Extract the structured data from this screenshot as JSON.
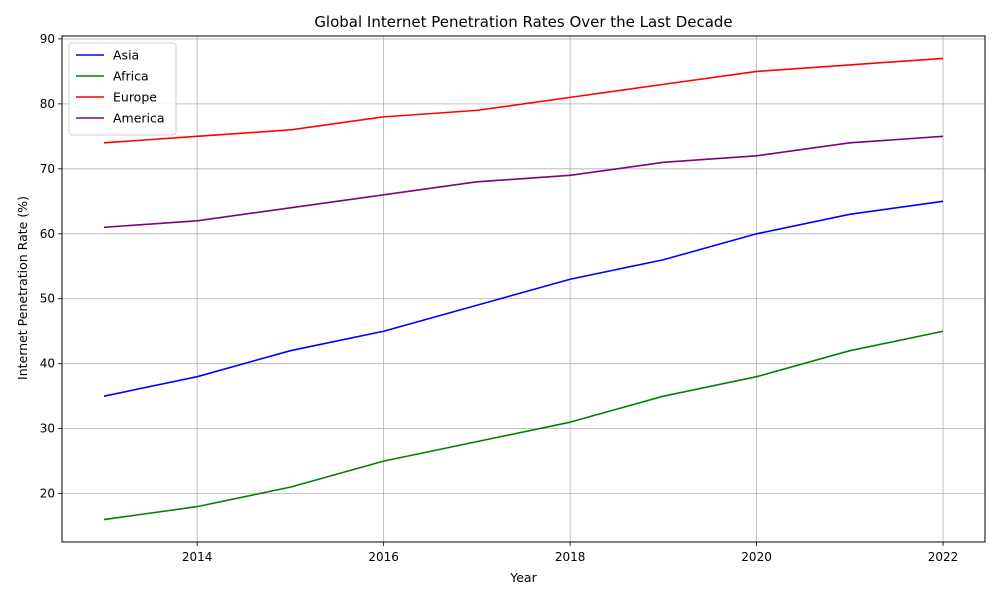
{
  "chart_data": {
    "type": "line",
    "title": "Global Internet Penetration Rates Over the Last Decade",
    "xlabel": "Year",
    "ylabel": "Internet Penetration Rate (%)",
    "x": [
      2013,
      2014,
      2015,
      2016,
      2017,
      2018,
      2019,
      2020,
      2021,
      2022
    ],
    "xlim": [
      2012.55,
      2022.45
    ],
    "ylim": [
      12.55,
      90.45
    ],
    "x_ticks": [
      2014,
      2016,
      2018,
      2020,
      2022
    ],
    "y_ticks": [
      20,
      30,
      40,
      50,
      60,
      70,
      80,
      90
    ],
    "grid": true,
    "legend_position": "top-left",
    "series": [
      {
        "name": "Asia",
        "color": "#0000ff",
        "values": [
          35,
          38,
          42,
          45,
          49,
          53,
          56,
          60,
          63,
          65
        ]
      },
      {
        "name": "Africa",
        "color": "#008000",
        "values": [
          16,
          18,
          21,
          25,
          28,
          31,
          35,
          38,
          42,
          45
        ]
      },
      {
        "name": "Europe",
        "color": "#ff0000",
        "values": [
          74,
          75,
          76,
          78,
          79,
          81,
          83,
          85,
          86,
          87
        ]
      },
      {
        "name": "America",
        "color": "#800080",
        "values": [
          61,
          62,
          64,
          66,
          68,
          69,
          71,
          72,
          74,
          75
        ]
      }
    ]
  }
}
